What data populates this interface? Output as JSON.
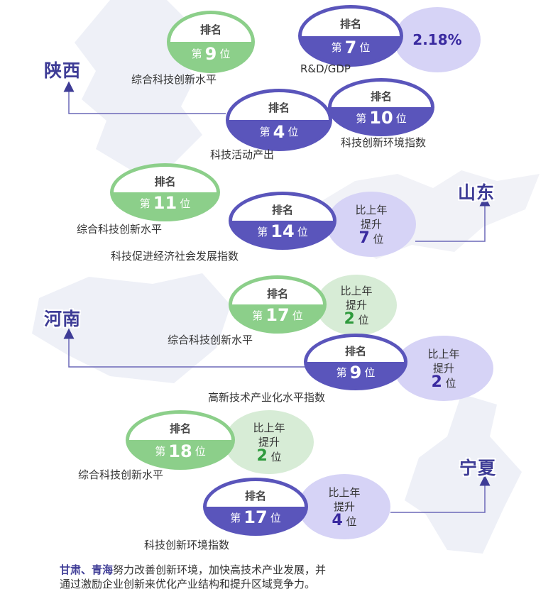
{
  "rank_label": "排名",
  "rank_prefix": "第",
  "rank_suffix": "位",
  "change_label_1": "比上年",
  "change_label_2": "提升",
  "shaanxi": {
    "name": "陕西",
    "rank_overall": "9",
    "caption_overall": "综合科技创新水平",
    "rank_rd": "7",
    "rd_value": "2.18%",
    "caption_rd": "R&D/GDP",
    "rank_activity": "4",
    "caption_activity": "科技活动产出",
    "rank_env": "10",
    "caption_env": "科技创新环境指数"
  },
  "shandong": {
    "name": "山东",
    "rank_overall": "11",
    "caption_overall": "综合科技创新水平",
    "rank_econ": "14",
    "econ_change": "7",
    "caption_econ": "科技促进经济社会发展指数"
  },
  "henan": {
    "name": "河南",
    "rank_overall": "17",
    "overall_change": "2",
    "caption_overall": "综合科技创新水平",
    "rank_hitech": "9",
    "hitech_change": "2",
    "caption_hitech": "高新技术产业化水平指数"
  },
  "ningxia": {
    "name": "宁夏",
    "rank_overall": "18",
    "overall_change": "2",
    "caption_overall": "综合科技创新水平",
    "rank_env": "17",
    "env_change": "4",
    "caption_env": "科技创新环境指数"
  },
  "footer": {
    "bold": "甘肃、青海",
    "text_1": "努力改善创新环境，加快高技术产业发展，并",
    "text_2": "通过激励企业创新来优化产业结构和提升区域竞争力。"
  }
}
